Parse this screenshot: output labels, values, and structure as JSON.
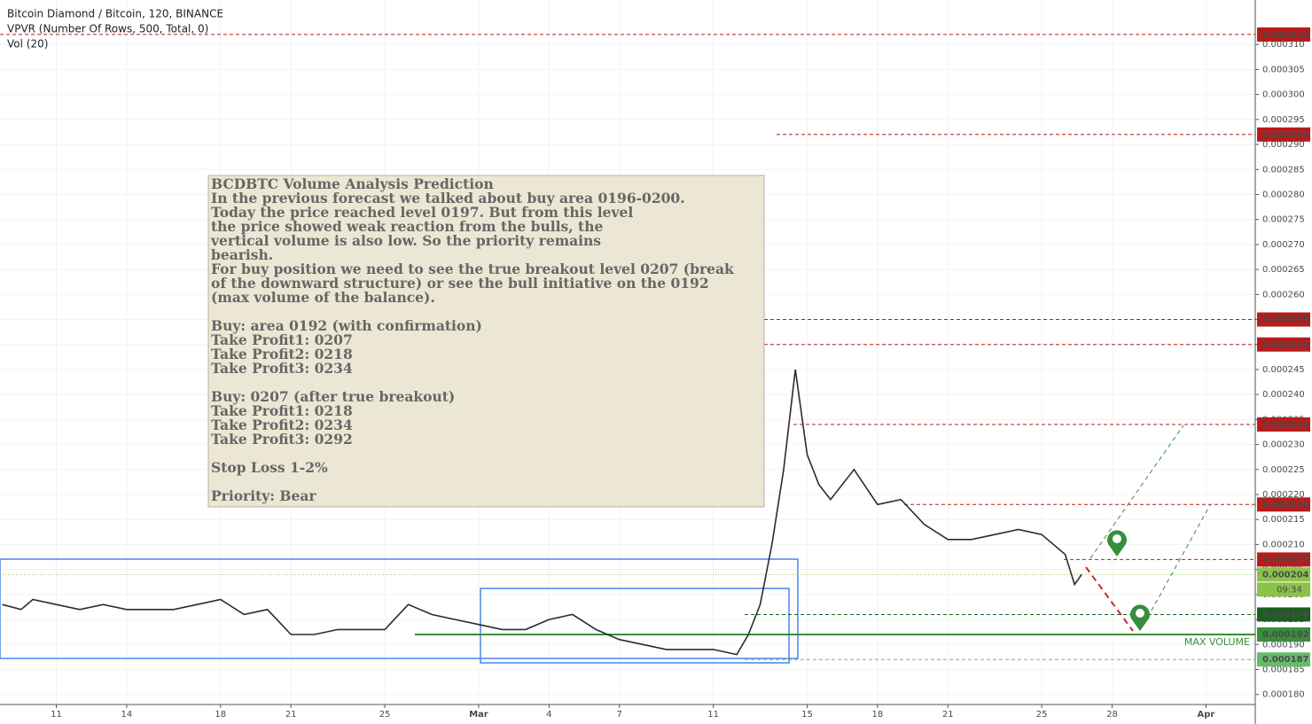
{
  "chart_data": {
    "type": "line",
    "header": [
      "Bitcoin Diamond / Bitcoin, 120, BINANCE",
      "VPVR (Number Of Rows, 500, Total, 0)",
      "Vol (20)"
    ],
    "xlim": [
      8.6,
      62.1
    ],
    "xticks": [
      {
        "value": 11,
        "label": "11"
      },
      {
        "value": 14,
        "label": "14"
      },
      {
        "value": 18,
        "label": "18"
      },
      {
        "value": 21,
        "label": "21"
      },
      {
        "value": 25,
        "label": "25"
      },
      {
        "value": 29,
        "label": "Mar"
      },
      {
        "value": 32,
        "label": "4"
      },
      {
        "value": 35,
        "label": "7"
      },
      {
        "value": 39,
        "label": "11"
      },
      {
        "value": 43,
        "label": "15"
      },
      {
        "value": 46,
        "label": "18"
      },
      {
        "value": 49,
        "label": "21"
      },
      {
        "value": 53,
        "label": "25"
      },
      {
        "value": 56,
        "label": "28"
      },
      {
        "value": 60,
        "label": "Apr"
      }
    ],
    "ylim": [
      0.000178,
      0.0003189
    ],
    "yticks": [
      {
        "value": 0.00018,
        "label": "0.000180"
      },
      {
        "value": 0.000185,
        "label": "0.000185"
      },
      {
        "value": 0.00019,
        "label": "0.000190"
      },
      {
        "value": 0.000195,
        "label": "0.000195"
      },
      {
        "value": 0.0002,
        "label": "0.000200"
      },
      {
        "value": 0.000205,
        "label": "0.000205"
      },
      {
        "value": 0.00021,
        "label": "0.000210"
      },
      {
        "value": 0.000215,
        "label": "0.000215"
      },
      {
        "value": 0.00022,
        "label": "0.000220"
      },
      {
        "value": 0.000225,
        "label": "0.000225"
      },
      {
        "value": 0.00023,
        "label": "0.000230"
      },
      {
        "value": 0.000235,
        "label": "0.000235"
      },
      {
        "value": 0.00024,
        "label": "0.000240"
      },
      {
        "value": 0.000245,
        "label": "0.000245"
      },
      {
        "value": 0.00025,
        "label": "0.000250"
      },
      {
        "value": 0.000255,
        "label": "0.000255"
      },
      {
        "value": 0.00026,
        "label": "0.000260"
      },
      {
        "value": 0.000265,
        "label": "0.000265"
      },
      {
        "value": 0.00027,
        "label": "0.000270"
      },
      {
        "value": 0.000275,
        "label": "0.000275"
      },
      {
        "value": 0.00028,
        "label": "0.000280"
      },
      {
        "value": 0.000285,
        "label": "0.000285"
      },
      {
        "value": 0.00029,
        "label": "0.000290"
      },
      {
        "value": 0.000295,
        "label": "0.000295"
      },
      {
        "value": 0.0003,
        "label": "0.000300"
      },
      {
        "value": 0.000305,
        "label": "0.000305"
      },
      {
        "value": 0.00031,
        "label": "0.000310"
      }
    ],
    "grid": true,
    "series": [
      {
        "color": "#2b2b2b",
        "x": [
          8.7,
          9.5,
          10,
          11,
          12,
          13,
          14,
          15,
          16,
          17,
          18,
          19,
          20,
          21,
          22,
          23,
          24,
          25,
          26,
          27,
          28,
          29,
          30,
          31,
          32,
          33,
          34,
          35,
          36,
          37,
          38,
          39,
          40,
          40.5,
          41,
          41.5,
          42,
          42.5,
          43,
          43.5,
          44,
          45,
          46,
          47,
          48,
          49,
          50,
          51,
          52,
          53,
          54,
          54.4,
          54.7
        ],
        "values": [
          0.000198,
          0.000197,
          0.000199,
          0.000198,
          0.000197,
          0.000198,
          0.000197,
          0.000197,
          0.000197,
          0.000198,
          0.000199,
          0.000196,
          0.000197,
          0.000192,
          0.000192,
          0.000193,
          0.000193,
          0.000193,
          0.000198,
          0.000196,
          0.000195,
          0.000194,
          0.000193,
          0.000193,
          0.000195,
          0.000196,
          0.000193,
          0.000191,
          0.00019,
          0.000189,
          0.000189,
          0.000189,
          0.000188,
          0.000192,
          0.000198,
          0.00021,
          0.000225,
          0.000245,
          0.000228,
          0.000222,
          0.000219,
          0.000225,
          0.000218,
          0.000219,
          0.000214,
          0.000211,
          0.000211,
          0.000212,
          0.000213,
          0.000212,
          0.000208,
          0.000202,
          0.000204
        ]
      }
    ],
    "levels": [
      {
        "value": 0.000312,
        "label": "0.000312",
        "color": "#b71c1c"
      },
      {
        "value": 0.000292,
        "label": "0.000292",
        "color": "#b71c1c"
      },
      {
        "value": 0.000255,
        "label": "0.000255",
        "color": "#b71c1c"
      },
      {
        "value": 0.00025,
        "label": "0.000250",
        "color": "#b71c1c"
      },
      {
        "value": 0.000234,
        "label": "0.000234",
        "color": "#b71c1c"
      },
      {
        "value": 0.000218,
        "label": "0.000218",
        "color": "#b71c1c"
      },
      {
        "value": 0.000207,
        "label": "0.000207",
        "color": "#b71c1c"
      },
      {
        "value": 0.000204,
        "label": "0.000204",
        "color": "#8bc34a"
      },
      {
        "value": 0.000196,
        "label": "0.000196",
        "color": "#1b5e20"
      },
      {
        "value": 0.000192,
        "label": "0.000192",
        "color": "#388e3c"
      },
      {
        "value": 0.000187,
        "label": "0.000187",
        "color": "#66bb6a"
      }
    ],
    "countdown": "09:34",
    "max_volume_label": "MAX VOLUME",
    "note": [
      [
        "BCDBTC Volume Analysis Prediction",
        "In the previous forecast we talked about buy area 0196-0200.",
        "Today the price reached level 0197. But from this level",
        "the price showed weak reaction from the bulls, the",
        "vertical volume is also low. So the priority remains",
        "bearish.",
        "For buy position  we need to see the true breakout level 0207 (break",
        "of the downward structure) or see the bull initiative on the 0192",
        "(max volume of the balance)."
      ],
      [
        "Buy: area 0192 (with confirmation)",
        "Take Profit1: 0207",
        "Take Profit2: 0218",
        "Take Profit3: 0234"
      ],
      [
        "Buy: 0207 (after true breakout)",
        "Take Profit1: 0218",
        "Take Profit2: 0234",
        "Take Profit3: 0292"
      ],
      [
        "Stop Loss 1-2%"
      ],
      [
        "Priority: Bear"
      ]
    ]
  }
}
